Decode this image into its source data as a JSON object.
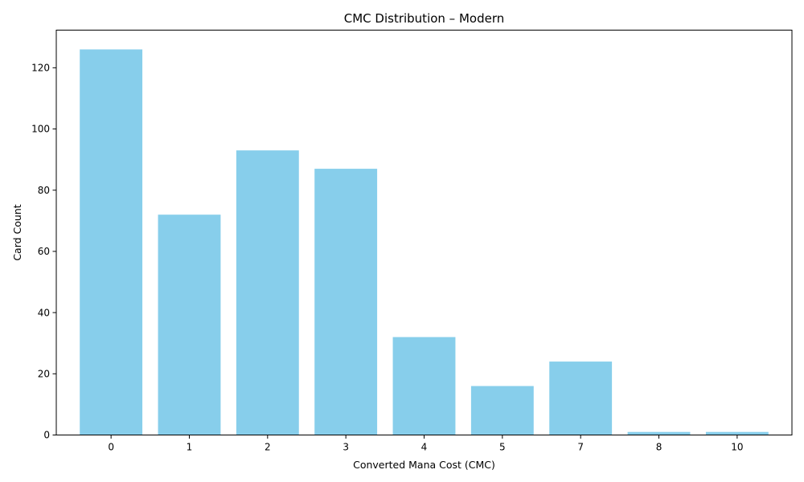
{
  "chart_data": {
    "type": "bar",
    "title": "CMC Distribution – Modern",
    "xlabel": "Converted Mana Cost (CMC)",
    "ylabel": "Card Count",
    "categories": [
      "0",
      "1",
      "2",
      "3",
      "4",
      "5",
      "7",
      "8",
      "10"
    ],
    "values": [
      126,
      72,
      93,
      87,
      32,
      16,
      24,
      1,
      1
    ],
    "ylim": [
      0,
      132.3
    ],
    "yticks": [
      0,
      20,
      40,
      60,
      80,
      100,
      120
    ],
    "bar_color": "#87CEEB",
    "grid": false,
    "legend": "none"
  }
}
